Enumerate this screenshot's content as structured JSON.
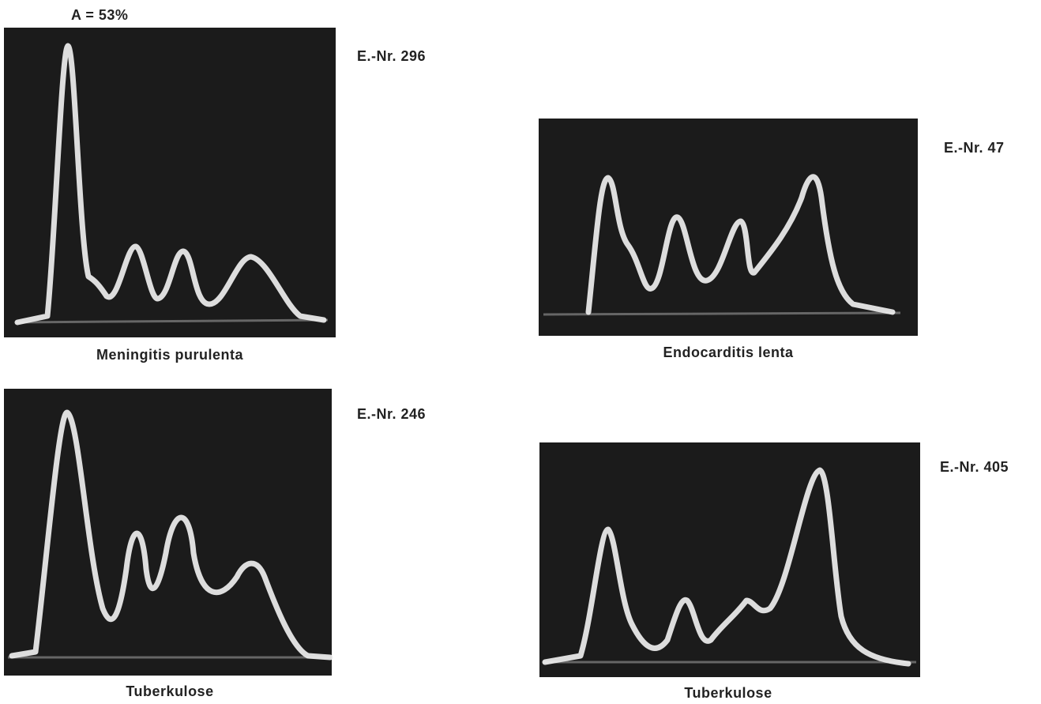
{
  "header": {
    "label": "A = 53%"
  },
  "panels": [
    {
      "number": "E.-Nr. 296",
      "caption": "Meningitis purulenta"
    },
    {
      "number": "E.-Nr. 47",
      "caption": "Endocarditis lenta"
    },
    {
      "number": "E.-Nr. 246",
      "caption": "Tuberkulose"
    },
    {
      "number": "E.-Nr. 405",
      "caption": "Tuberkulose"
    }
  ]
}
